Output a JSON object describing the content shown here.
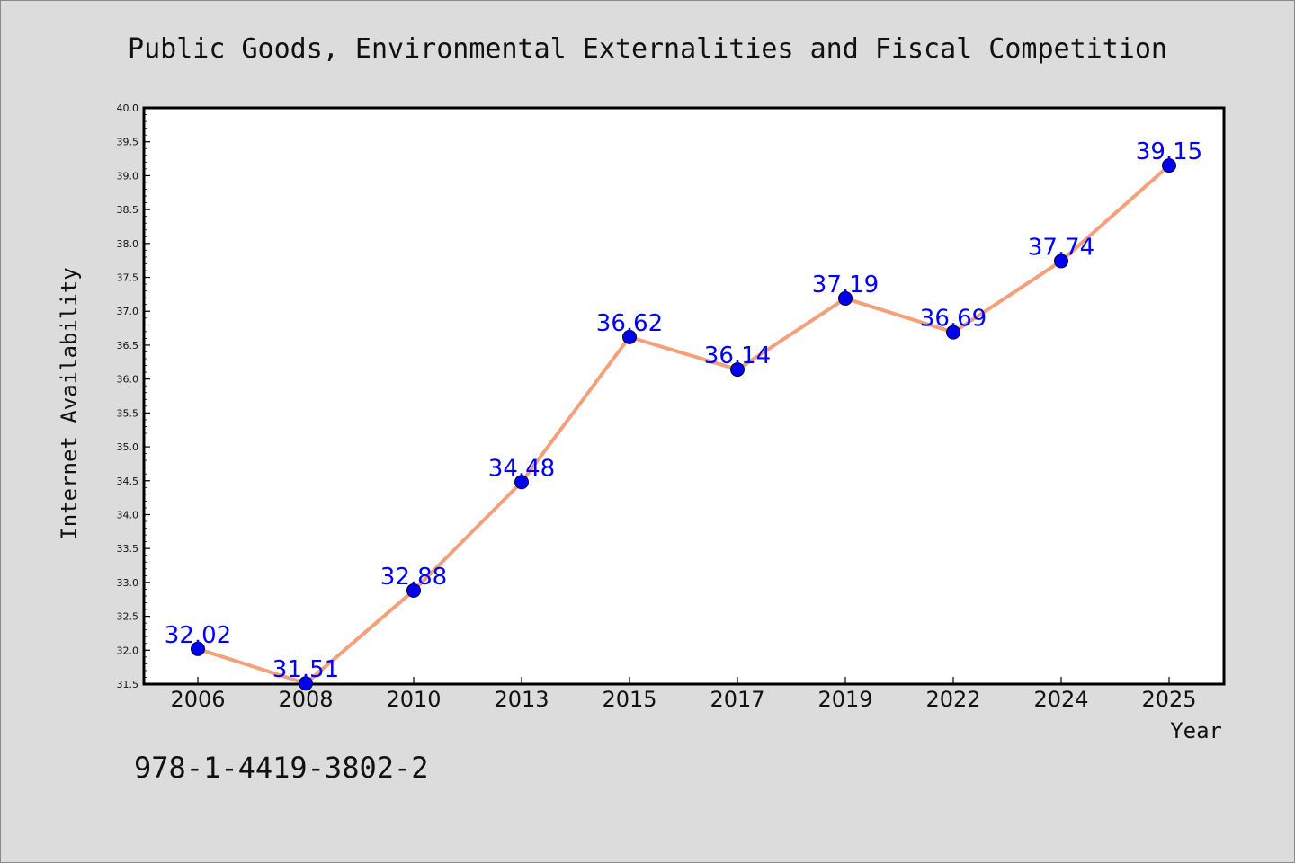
{
  "chart_data": {
    "type": "line",
    "title": "Public Goods, Environmental Externalities and Fiscal Competition",
    "xlabel": "Year",
    "ylabel": "Internet Availability",
    "categories": [
      "2006",
      "2008",
      "2010",
      "2013",
      "2015",
      "2017",
      "2019",
      "2022",
      "2024",
      "2025"
    ],
    "values": [
      32.02,
      31.51,
      32.88,
      34.48,
      36.62,
      36.14,
      37.19,
      36.69,
      37.74,
      39.15
    ],
    "data_labels": [
      "32.02",
      "31.51",
      "32.88",
      "34.48",
      "36.62",
      "36.14",
      "37.19",
      "36.69",
      "37.74",
      "39.15"
    ],
    "ylim": [
      31.5,
      40.0
    ],
    "yticks": [
      "31.5",
      "32.0",
      "32.5",
      "33.0",
      "33.5",
      "34.0",
      "34.5",
      "35.0",
      "35.5",
      "36.0",
      "36.5",
      "37.0",
      "37.5",
      "38.0",
      "38.5",
      "39.0",
      "39.5",
      "40.0"
    ],
    "grid": false,
    "legend": "none",
    "colors": {
      "line": "#f4a07a",
      "marker": "#0000ee",
      "label": "#0000ff",
      "background": "#dcdcdc",
      "plot_background": "#ffffff"
    }
  },
  "footer": {
    "isbn": "978-1-4419-3802-2"
  }
}
